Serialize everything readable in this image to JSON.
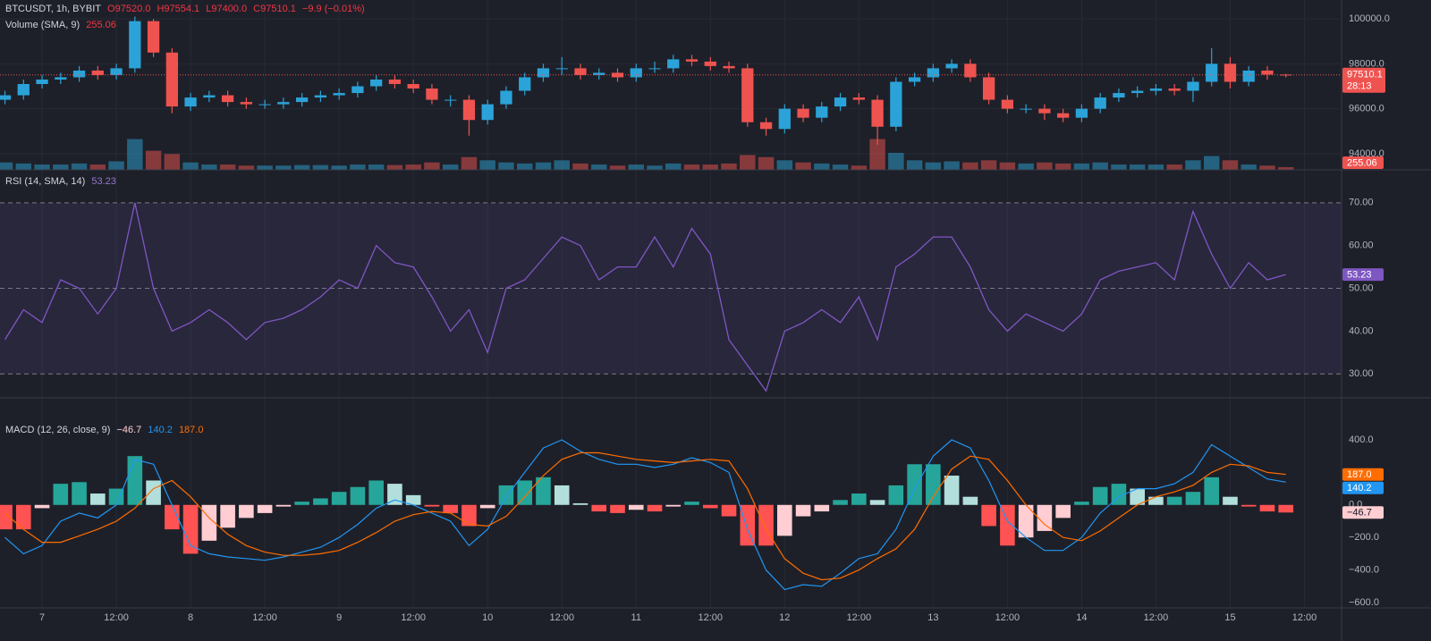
{
  "header": {
    "symbol": "BTCUSDT, 1h, BYBIT",
    "open": "O97520.0",
    "high": "H97554.1",
    "low": "L97400.0",
    "close": "C97510.1",
    "change": "−9.9 (−0.01%)",
    "volume_title": "Volume (SMA, 9)"
  },
  "chart_data": [
    {
      "type": "candlestick",
      "x": [
        -6,
        -3,
        0,
        3,
        6,
        9,
        12,
        15,
        18,
        21,
        24,
        27,
        30,
        33,
        36,
        39,
        42,
        45,
        48,
        51,
        54,
        57,
        60,
        63,
        66,
        69,
        72,
        75,
        78,
        81,
        84,
        87,
        90,
        93,
        96,
        99,
        102,
        105,
        108,
        111,
        114,
        117,
        120,
        123,
        126,
        129,
        132,
        135,
        138,
        141,
        144,
        147,
        150,
        153,
        156,
        159,
        162,
        165,
        168,
        171,
        174,
        177,
        180,
        183,
        186,
        189,
        192,
        195,
        198,
        201
      ],
      "ohlc": [
        [
          96400,
          96800,
          96200,
          96600
        ],
        [
          96600,
          97300,
          96400,
          97100
        ],
        [
          97100,
          97500,
          96900,
          97300
        ],
        [
          97300,
          97600,
          97100,
          97400
        ],
        [
          97400,
          97900,
          97200,
          97700
        ],
        [
          97700,
          97900,
          97300,
          97500
        ],
        [
          97500,
          98000,
          97300,
          97800
        ],
        [
          97800,
          100100,
          97600,
          99900
        ],
        [
          99900,
          100000,
          98300,
          98500
        ],
        [
          98500,
          98700,
          95800,
          96100
        ],
        [
          96100,
          96700,
          95900,
          96500
        ],
        [
          96500,
          96800,
          96300,
          96600
        ],
        [
          96600,
          96800,
          96100,
          96300
        ],
        [
          96300,
          96500,
          96000,
          96200
        ],
        [
          96200,
          96400,
          96000,
          96200
        ],
        [
          96200,
          96500,
          96000,
          96300
        ],
        [
          96300,
          96700,
          96100,
          96500
        ],
        [
          96500,
          96800,
          96300,
          96600
        ],
        [
          96600,
          96900,
          96400,
          96700
        ],
        [
          96700,
          97200,
          96500,
          97000
        ],
        [
          97000,
          97500,
          96800,
          97300
        ],
        [
          97300,
          97500,
          96900,
          97100
        ],
        [
          97100,
          97300,
          96700,
          96900
        ],
        [
          96900,
          97100,
          96200,
          96400
        ],
        [
          96400,
          96600,
          96100,
          96400
        ],
        [
          96400,
          96600,
          94800,
          95500
        ],
        [
          95500,
          96400,
          95300,
          96200
        ],
        [
          96200,
          97000,
          96000,
          96800
        ],
        [
          96800,
          97600,
          96600,
          97400
        ],
        [
          97400,
          98000,
          97200,
          97800
        ],
        [
          97800,
          98300,
          97500,
          97800
        ],
        [
          97800,
          98000,
          97300,
          97500
        ],
        [
          97500,
          97800,
          97300,
          97600
        ],
        [
          97600,
          97800,
          97200,
          97400
        ],
        [
          97400,
          98000,
          97200,
          97800
        ],
        [
          97800,
          98100,
          97600,
          97800
        ],
        [
          97800,
          98400,
          97600,
          98200
        ],
        [
          98200,
          98400,
          97900,
          98100
        ],
        [
          98100,
          98300,
          97700,
          97900
        ],
        [
          97900,
          98100,
          97600,
          97800
        ],
        [
          97800,
          98000,
          95200,
          95400
        ],
        [
          95400,
          95600,
          94800,
          95100
        ],
        [
          95100,
          96200,
          94900,
          96000
        ],
        [
          96000,
          96200,
          95400,
          95600
        ],
        [
          95600,
          96300,
          95400,
          96100
        ],
        [
          96100,
          96700,
          95900,
          96500
        ],
        [
          96500,
          96700,
          96200,
          96400
        ],
        [
          96400,
          96600,
          94400,
          95200
        ],
        [
          95200,
          97400,
          95000,
          97200
        ],
        [
          97200,
          97600,
          97000,
          97400
        ],
        [
          97400,
          98000,
          97200,
          97800
        ],
        [
          97800,
          98200,
          97600,
          98000
        ],
        [
          98000,
          98200,
          97200,
          97400
        ],
        [
          97400,
          97600,
          96200,
          96400
        ],
        [
          96400,
          96600,
          95800,
          96000
        ],
        [
          96000,
          96200,
          95800,
          96000
        ],
        [
          96000,
          96200,
          95500,
          95800
        ],
        [
          95800,
          96000,
          95400,
          95600
        ],
        [
          95600,
          96200,
          95400,
          96000
        ],
        [
          96000,
          96700,
          95800,
          96500
        ],
        [
          96500,
          96900,
          96300,
          96700
        ],
        [
          96700,
          97000,
          96500,
          96800
        ],
        [
          96800,
          97100,
          96600,
          96900
        ],
        [
          96900,
          97100,
          96600,
          96800
        ],
        [
          96800,
          97400,
          96300,
          97200
        ],
        [
          97200,
          98700,
          97000,
          98000
        ],
        [
          98000,
          98300,
          96900,
          97200
        ],
        [
          97200,
          97900,
          97000,
          97700
        ],
        [
          97700,
          97900,
          97300,
          97520
        ],
        [
          97520,
          97554.1,
          97400,
          97510.1
        ]
      ],
      "up_color": "#2ba3d8",
      "down_color": "#ef5350",
      "ylim": [
        93280,
        100840
      ],
      "yticks": [
        {
          "value": 94000,
          "label": "94000.0"
        },
        {
          "value": 96000,
          "label": "96000.0"
        },
        {
          "value": 98000,
          "label": "98000.0"
        },
        {
          "value": 100000,
          "label": "100000.0"
        }
      ],
      "countdown": "28:13",
      "volume": {
        "values": [
          700,
          600,
          500,
          500,
          600,
          500,
          800,
          2900,
          1800,
          1500,
          700,
          500,
          500,
          400,
          400,
          400,
          450,
          450,
          400,
          500,
          500,
          450,
          500,
          700,
          500,
          1200,
          900,
          700,
          600,
          700,
          900,
          600,
          500,
          400,
          500,
          400,
          600,
          500,
          500,
          600,
          1400,
          1200,
          900,
          700,
          600,
          500,
          400,
          2900,
          1600,
          900,
          700,
          800,
          700,
          900,
          700,
          600,
          700,
          600,
          600,
          700,
          500,
          500,
          500,
          500,
          900,
          1300,
          900,
          500,
          400,
          255.06
        ],
        "ylim": [
          0,
          16000
        ]
      }
    },
    {
      "type": "line",
      "title": "RSI (14, SMA, 14)",
      "color": "#7e57c2",
      "values": [
        38,
        45,
        42,
        52,
        50,
        44,
        50,
        70,
        50,
        40,
        42,
        45,
        42,
        38,
        42,
        43,
        45,
        48,
        52,
        50,
        60,
        56,
        55,
        48,
        40,
        45,
        35,
        50,
        52,
        57,
        62,
        60,
        52,
        55,
        55,
        62,
        55,
        64,
        58,
        38,
        32,
        26,
        40,
        42,
        45,
        42,
        48,
        38,
        55,
        58,
        62,
        62,
        55,
        45,
        40,
        44,
        42,
        40,
        44,
        52,
        54,
        55,
        56,
        52,
        68,
        58,
        50,
        56,
        52,
        53.23
      ],
      "ylim": [
        24.4,
        77.7
      ],
      "yticks": [
        {
          "value": 30,
          "label": "30.00"
        },
        {
          "value": 40,
          "label": "40.00"
        },
        {
          "value": 50,
          "label": "50.00"
        },
        {
          "value": 60,
          "label": "60.00"
        },
        {
          "value": 70,
          "label": "70.00"
        }
      ],
      "levels": [
        30,
        50,
        70
      ]
    },
    {
      "type": "macd",
      "title": "MACD (12, 26, close, 9)",
      "series": [
        {
          "color": "#2196f3",
          "values": [
            -200,
            -300,
            -250,
            -100,
            -50,
            -80,
            0,
            280,
            250,
            0,
            -250,
            -300,
            -320,
            -330,
            -340,
            -320,
            -290,
            -260,
            -200,
            -120,
            -20,
            30,
            0,
            -50,
            -100,
            -250,
            -150,
            50,
            200,
            350,
            400,
            330,
            280,
            250,
            250,
            230,
            250,
            290,
            260,
            200,
            -150,
            -400,
            -520,
            -490,
            -500,
            -420,
            -330,
            -300,
            -150,
            100,
            300,
            400,
            350,
            150,
            -100,
            -200,
            -280,
            -280,
            -200,
            -50,
            50,
            100,
            100,
            130,
            200,
            370,
            300,
            230,
            160,
            140.2
          ],
          "last_label": "140.2"
        },
        {
          "color": "#ff6d00",
          "values": [
            -50,
            -150,
            -230,
            -230,
            -190,
            -150,
            -100,
            -20,
            100,
            150,
            50,
            -80,
            -180,
            -250,
            -290,
            -310,
            -310,
            -300,
            -280,
            -230,
            -170,
            -100,
            -60,
            -40,
            -50,
            -120,
            -130,
            -70,
            50,
            180,
            280,
            320,
            320,
            300,
            280,
            270,
            260,
            270,
            280,
            270,
            100,
            -150,
            -330,
            -420,
            -460,
            -450,
            -400,
            -330,
            -270,
            -150,
            50,
            220,
            300,
            280,
            150,
            0,
            -120,
            -200,
            -220,
            -160,
            -80,
            0,
            50,
            80,
            120,
            200,
            250,
            240,
            200,
            187
          ],
          "last_label": "187.0"
        }
      ],
      "histogram": {
        "values": [
          -150,
          -150,
          -20,
          130,
          140,
          70,
          100,
          300,
          150,
          -150,
          -300,
          -220,
          -140,
          -80,
          -50,
          -10,
          20,
          40,
          80,
          110,
          150,
          130,
          60,
          -10,
          -50,
          -130,
          -20,
          120,
          150,
          170,
          120,
          10,
          -40,
          -50,
          -30,
          -40,
          -10,
          20,
          -20,
          -70,
          -250,
          -250,
          -190,
          -70,
          -40,
          30,
          70,
          30,
          120,
          250,
          250,
          180,
          50,
          -130,
          -250,
          -200,
          -160,
          -80,
          20,
          110,
          130,
          100,
          50,
          50,
          80,
          170,
          50,
          -10,
          -40,
          -46.7
        ],
        "colors": [
          "#26a69a",
          "#b2dfdb",
          "#ff5252",
          "#ffcdd2"
        ],
        "last_label": "−46.7"
      },
      "ylim": [
        -633,
        658
      ],
      "yticks": [
        {
          "value": -600,
          "label": "−600.0"
        },
        {
          "value": -400,
          "label": "−400.0"
        },
        {
          "value": -200,
          "label": "−200.0"
        },
        {
          "value": 0,
          "label": "0.0"
        },
        {
          "value": 200,
          "label": "200.0"
        },
        {
          "value": 400,
          "label": "400.0"
        }
      ],
      "xlim": [
        -6.8,
        210
      ],
      "xticks": [
        {
          "value": 0,
          "label": "7"
        },
        {
          "value": 12,
          "label": "12:00"
        },
        {
          "value": 24,
          "label": "8"
        },
        {
          "value": 36,
          "label": "12:00"
        },
        {
          "value": 48,
          "label": "9"
        },
        {
          "value": 60,
          "label": "12:00"
        },
        {
          "value": 72,
          "label": "10"
        },
        {
          "value": 84,
          "label": "12:00"
        },
        {
          "value": 96,
          "label": "11"
        },
        {
          "value": 108,
          "label": "12:00"
        },
        {
          "value": 120,
          "label": "12"
        },
        {
          "value": 132,
          "label": "12:00"
        },
        {
          "value": 144,
          "label": "13"
        },
        {
          "value": 156,
          "label": "12:00"
        },
        {
          "value": 168,
          "label": "14"
        },
        {
          "value": 180,
          "label": "12:00"
        },
        {
          "value": 192,
          "label": "15"
        },
        {
          "value": 204,
          "label": "12:00"
        }
      ]
    }
  ]
}
